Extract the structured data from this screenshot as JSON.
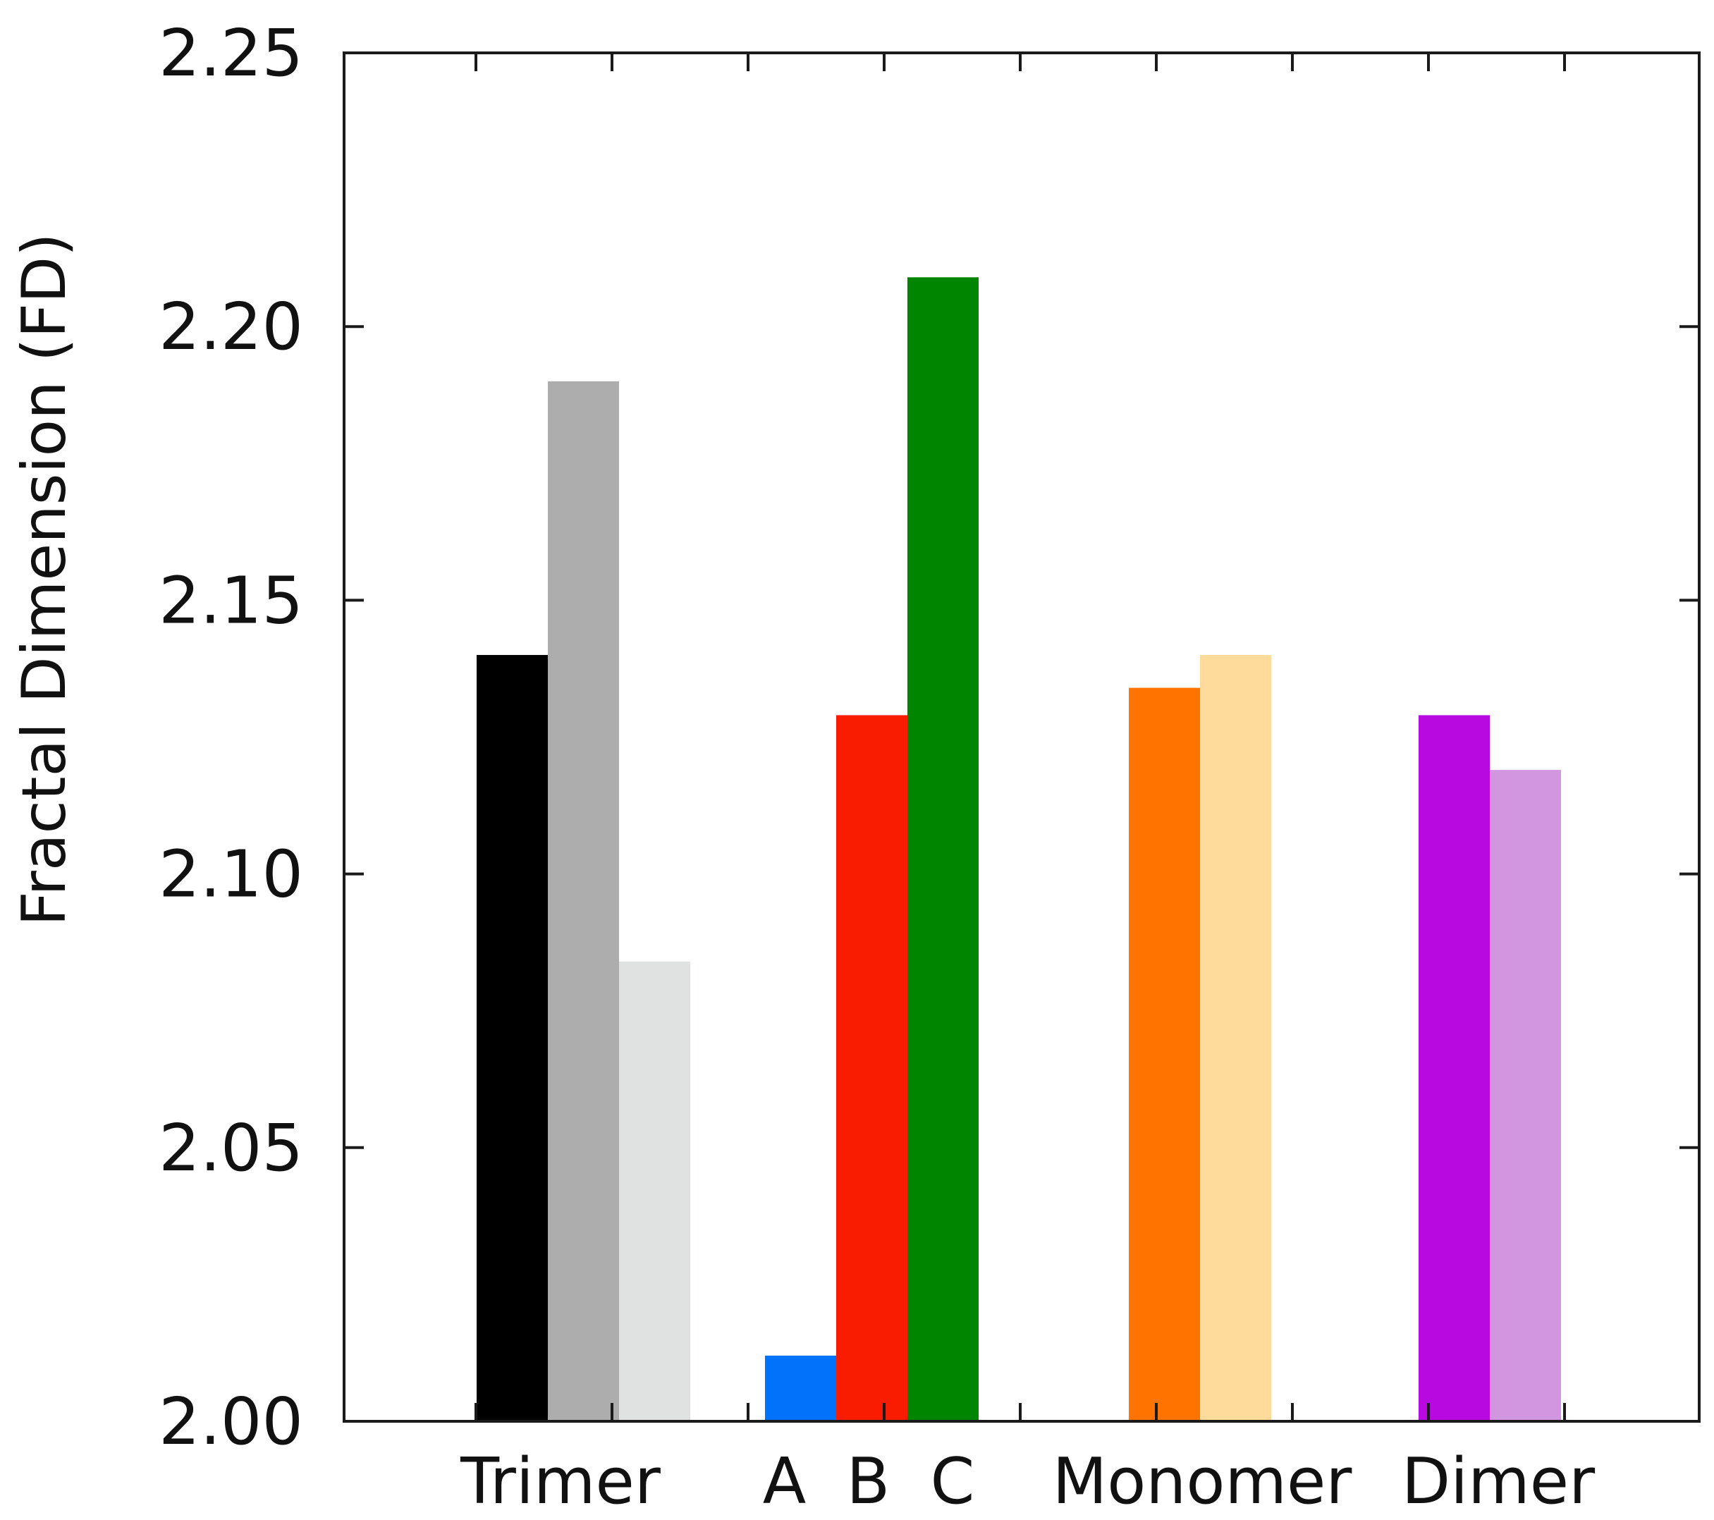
{
  "chart_data": {
    "type": "bar",
    "title": "",
    "xlabel": "",
    "ylabel": "Fractal Dimension (FD)",
    "ylim": [
      2.0,
      2.25
    ],
    "yticks": [
      "2.00",
      "2.05",
      "2.10",
      "2.15",
      "2.20",
      "2.25"
    ],
    "grid": false,
    "legend": "none",
    "groups": [
      {
        "label": "Trimer",
        "bars": [
          {
            "value": 2.14,
            "color": "#000000"
          },
          {
            "value": 2.19,
            "color": "#adadad"
          },
          {
            "value": 2.084,
            "color": "#e0e2e1"
          }
        ]
      },
      {
        "label": "A  B  C",
        "bars": [
          {
            "value": 2.012,
            "color": "#0073fa"
          },
          {
            "value": 2.129,
            "color": "#fa1c00"
          },
          {
            "value": 2.209,
            "color": "#008500"
          }
        ]
      },
      {
        "label": "Monomer",
        "bars": [
          {
            "value": 2.134,
            "color": "#ff7400"
          },
          {
            "value": 2.14,
            "color": "#ffdb9b"
          }
        ]
      },
      {
        "label": "Dimer",
        "bars": [
          {
            "value": 2.129,
            "color": "#b80ae0"
          },
          {
            "value": 2.119,
            "color": "#d296e0"
          }
        ]
      }
    ]
  }
}
